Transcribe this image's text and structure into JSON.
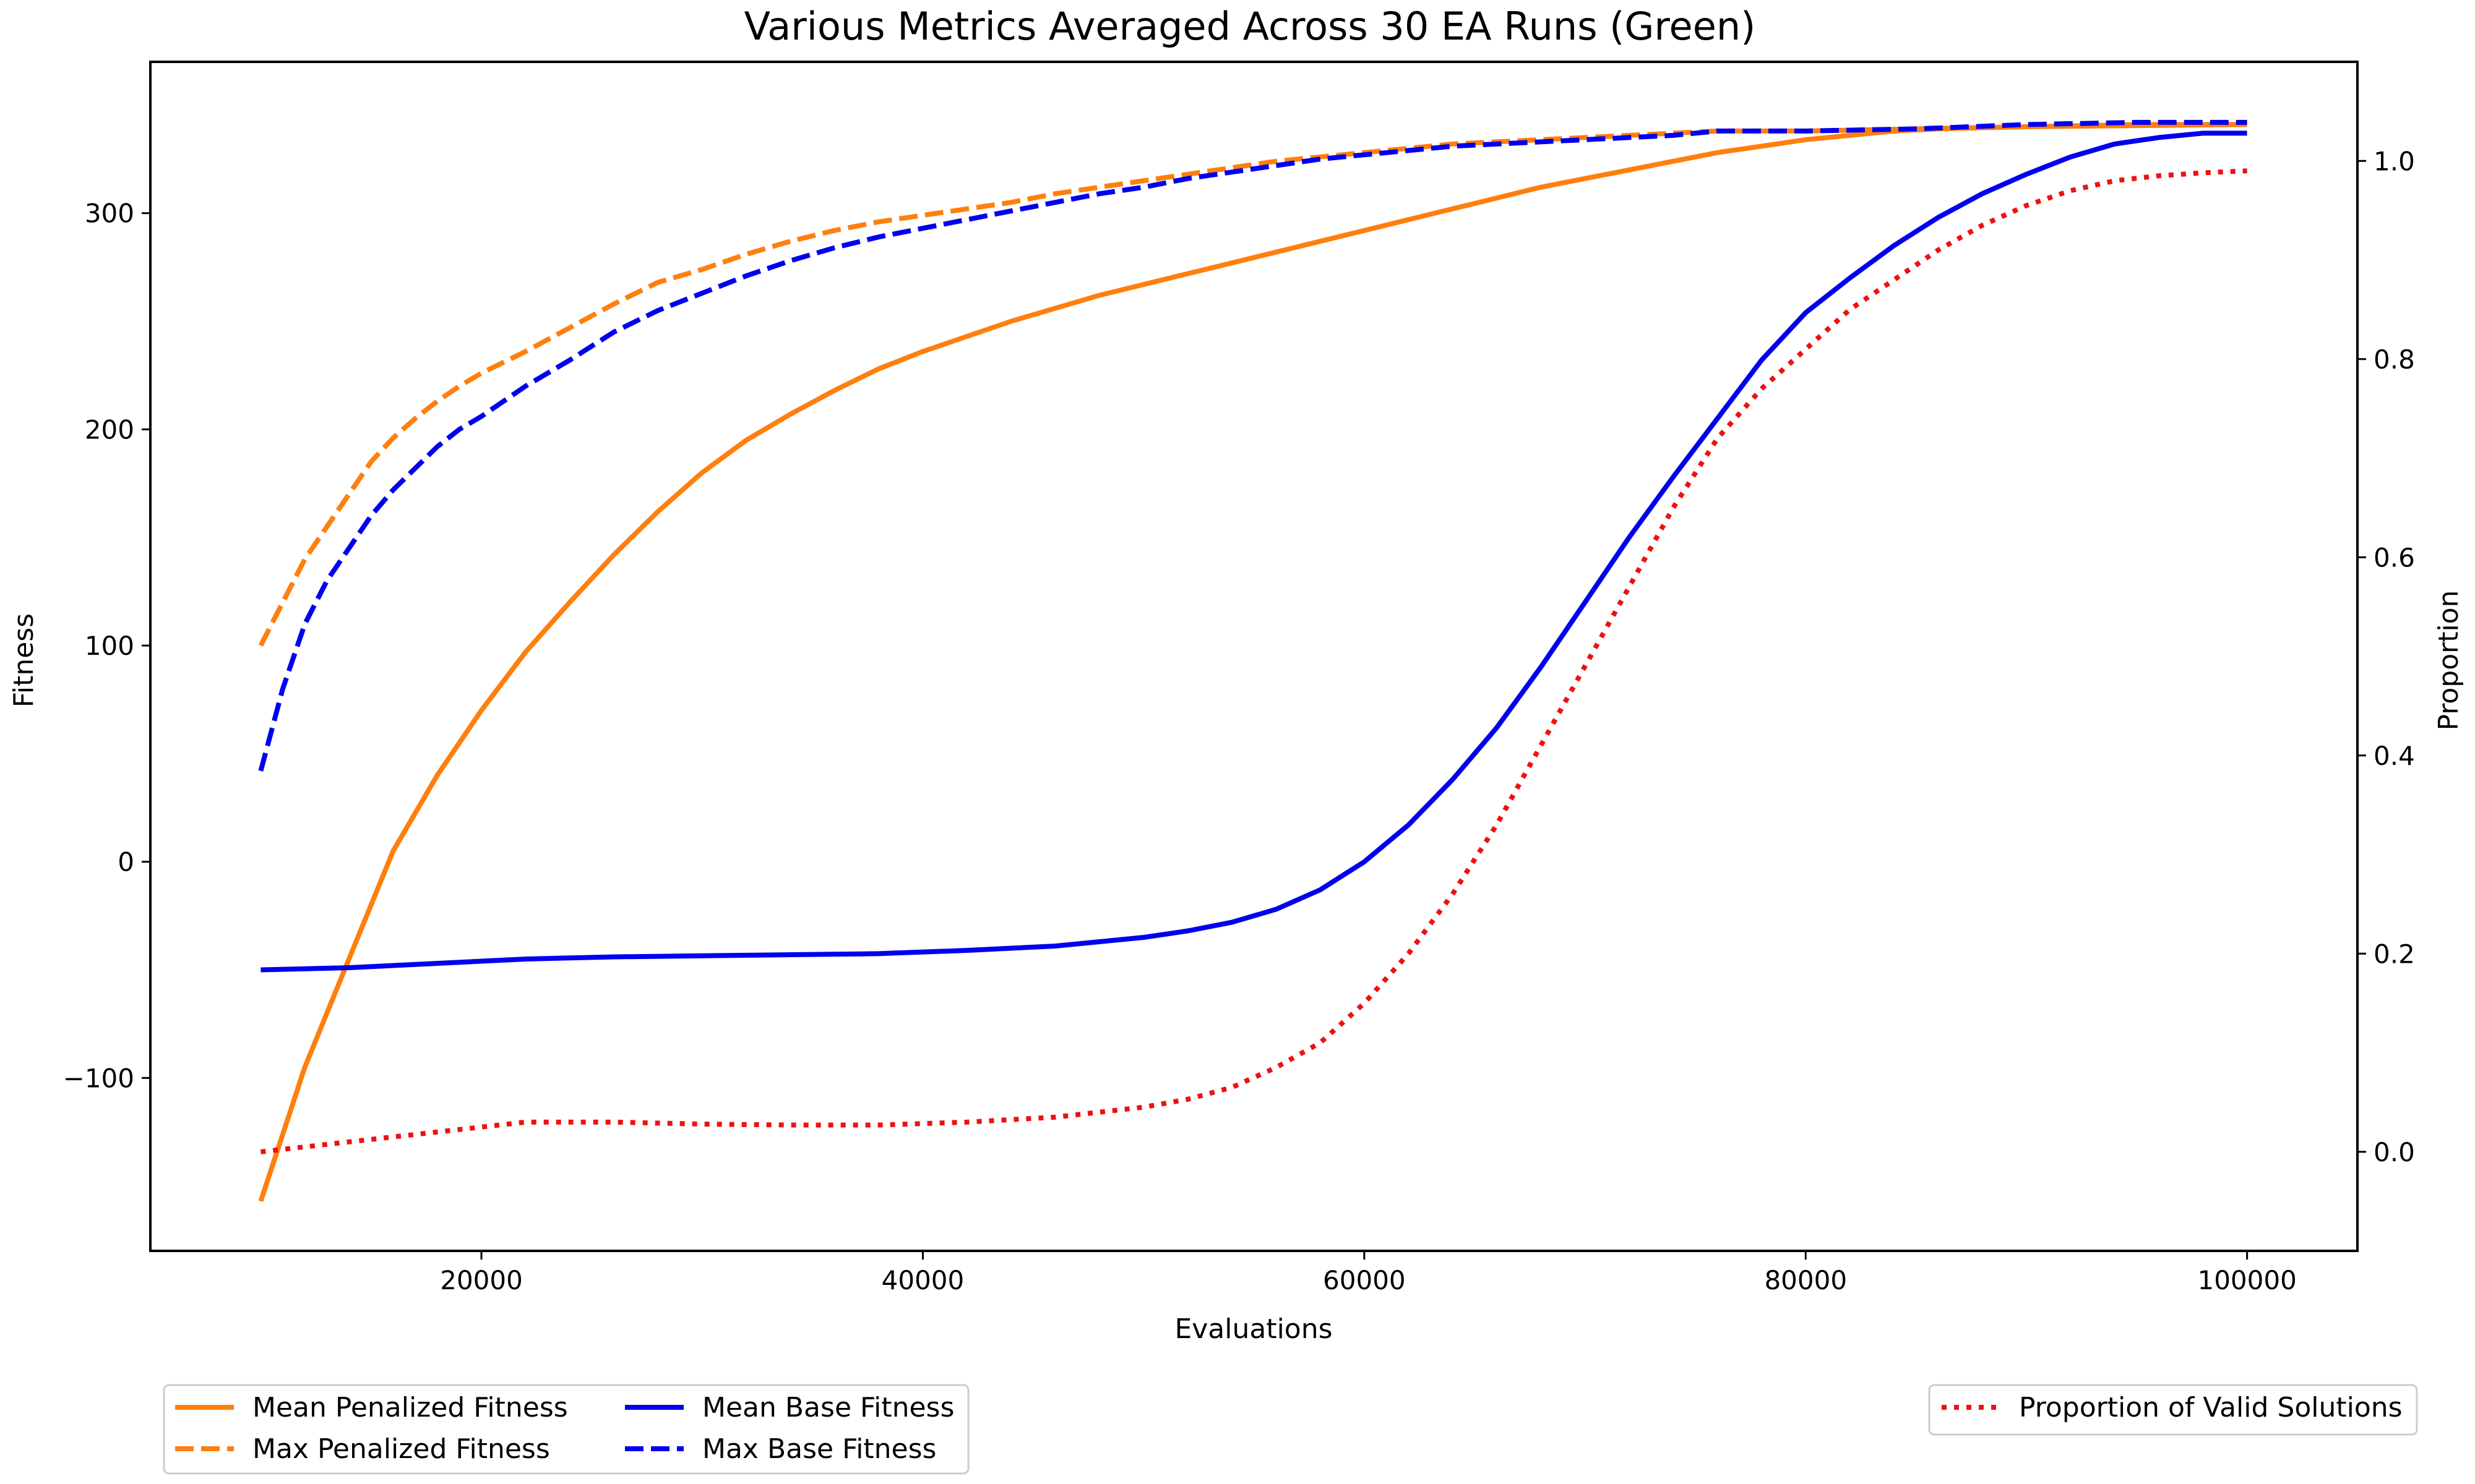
{
  "chart_data": {
    "type": "line",
    "title": "Various Metrics Averaged Across 30 EA Runs (Green)",
    "xlabel": "Evaluations",
    "ylabel": "Fitness",
    "y2label": "Proportion",
    "xlim": [
      5000,
      105000
    ],
    "ylim": [
      -180,
      370
    ],
    "y2lim": [
      -0.1,
      1.1
    ],
    "xticks": [
      20000,
      40000,
      60000,
      80000,
      100000
    ],
    "yticks": [
      -100,
      0,
      100,
      200,
      300
    ],
    "y2ticks": [
      0.0,
      0.2,
      0.4,
      0.6,
      0.8,
      1.0
    ],
    "xtick_labels": [
      "20000",
      "40000",
      "60000",
      "80000",
      "100000"
    ],
    "ytick_labels": [
      "−100",
      "0",
      "100",
      "200",
      "300"
    ],
    "y2tick_labels": [
      "0.0",
      "0.2",
      "0.4",
      "0.6",
      "0.8",
      "1.0"
    ],
    "grid": false,
    "legend_left": [
      "Mean Penalized Fitness",
      "Max Penalized Fitness",
      "Mean Base Fitness",
      "Max Base Fitness"
    ],
    "legend_right": [
      "Proportion of Valid Solutions"
    ],
    "legend_placement": "below",
    "series": [
      {
        "name": "Mean Penalized Fitness",
        "axis": "left",
        "color": "#ff7f0e",
        "style": "solid",
        "points": [
          [
            10000,
            -157
          ],
          [
            12000,
            -95
          ],
          [
            14000,
            -45
          ],
          [
            16000,
            5
          ],
          [
            18000,
            40
          ],
          [
            20000,
            70
          ],
          [
            22000,
            97
          ],
          [
            24000,
            120
          ],
          [
            26000,
            142
          ],
          [
            28000,
            162
          ],
          [
            30000,
            180
          ],
          [
            32000,
            195
          ],
          [
            34000,
            207
          ],
          [
            36000,
            218
          ],
          [
            38000,
            228
          ],
          [
            40000,
            236
          ],
          [
            42000,
            243
          ],
          [
            44000,
            250
          ],
          [
            46000,
            256
          ],
          [
            48000,
            262
          ],
          [
            50000,
            267
          ],
          [
            52000,
            272
          ],
          [
            54000,
            277
          ],
          [
            56000,
            282
          ],
          [
            58000,
            287
          ],
          [
            60000,
            292
          ],
          [
            62000,
            297
          ],
          [
            64000,
            302
          ],
          [
            66000,
            307
          ],
          [
            68000,
            312
          ],
          [
            70000,
            316
          ],
          [
            72000,
            320
          ],
          [
            74000,
            324
          ],
          [
            76000,
            328
          ],
          [
            78000,
            331
          ],
          [
            80000,
            334
          ],
          [
            82000,
            336
          ],
          [
            84000,
            338
          ],
          [
            86000,
            339
          ],
          [
            88000,
            339.5
          ],
          [
            90000,
            340
          ],
          [
            95000,
            340.5
          ],
          [
            100000,
            341
          ]
        ]
      },
      {
        "name": "Max Penalized Fitness",
        "axis": "left",
        "color": "#ff7f0e",
        "style": "dashed",
        "points": [
          [
            10000,
            100
          ],
          [
            11000,
            120
          ],
          [
            12000,
            140
          ],
          [
            13000,
            155
          ],
          [
            14000,
            170
          ],
          [
            15000,
            185
          ],
          [
            16000,
            196
          ],
          [
            17000,
            205
          ],
          [
            18000,
            213
          ],
          [
            19000,
            220
          ],
          [
            20000,
            226
          ],
          [
            22000,
            236
          ],
          [
            24000,
            247
          ],
          [
            26000,
            258
          ],
          [
            28000,
            268
          ],
          [
            30000,
            274
          ],
          [
            32000,
            281
          ],
          [
            34000,
            287
          ],
          [
            36000,
            292
          ],
          [
            38000,
            296
          ],
          [
            40000,
            299
          ],
          [
            42000,
            302
          ],
          [
            44000,
            305
          ],
          [
            46000,
            309
          ],
          [
            48000,
            312
          ],
          [
            50000,
            315
          ],
          [
            52000,
            318
          ],
          [
            54000,
            321
          ],
          [
            56000,
            324
          ],
          [
            58000,
            326
          ],
          [
            60000,
            328
          ],
          [
            62000,
            330
          ],
          [
            64000,
            332
          ],
          [
            66000,
            333
          ],
          [
            68000,
            334
          ],
          [
            70000,
            335
          ],
          [
            72000,
            336
          ],
          [
            74000,
            337
          ],
          [
            76000,
            338
          ],
          [
            80000,
            338
          ],
          [
            85000,
            339
          ],
          [
            90000,
            340
          ],
          [
            95000,
            341
          ],
          [
            100000,
            341
          ]
        ]
      },
      {
        "name": "Mean Base Fitness",
        "axis": "left",
        "color": "#0000ee",
        "style": "solid",
        "points": [
          [
            10000,
            -50
          ],
          [
            14000,
            -49
          ],
          [
            18000,
            -47
          ],
          [
            22000,
            -45
          ],
          [
            26000,
            -44
          ],
          [
            30000,
            -43.5
          ],
          [
            34000,
            -43
          ],
          [
            38000,
            -42.5
          ],
          [
            42000,
            -41
          ],
          [
            46000,
            -39
          ],
          [
            48000,
            -37
          ],
          [
            50000,
            -35
          ],
          [
            52000,
            -32
          ],
          [
            54000,
            -28
          ],
          [
            56000,
            -22
          ],
          [
            58000,
            -13
          ],
          [
            60000,
            0
          ],
          [
            62000,
            17
          ],
          [
            64000,
            38
          ],
          [
            66000,
            62
          ],
          [
            68000,
            90
          ],
          [
            70000,
            120
          ],
          [
            72000,
            150
          ],
          [
            74000,
            178
          ],
          [
            76000,
            205
          ],
          [
            78000,
            232
          ],
          [
            80000,
            254
          ],
          [
            82000,
            270
          ],
          [
            84000,
            285
          ],
          [
            86000,
            298
          ],
          [
            88000,
            309
          ],
          [
            90000,
            318
          ],
          [
            92000,
            326
          ],
          [
            94000,
            332
          ],
          [
            96000,
            335
          ],
          [
            98000,
            337
          ],
          [
            100000,
            337
          ]
        ]
      },
      {
        "name": "Max Base Fitness",
        "axis": "left",
        "color": "#0000ee",
        "style": "dashed",
        "points": [
          [
            10000,
            42
          ],
          [
            11000,
            80
          ],
          [
            12000,
            110
          ],
          [
            13000,
            130
          ],
          [
            14000,
            145
          ],
          [
            15000,
            160
          ],
          [
            16000,
            172
          ],
          [
            17000,
            182
          ],
          [
            18000,
            192
          ],
          [
            19000,
            200
          ],
          [
            20000,
            206
          ],
          [
            22000,
            220
          ],
          [
            24000,
            232
          ],
          [
            26000,
            245
          ],
          [
            28000,
            255
          ],
          [
            30000,
            263
          ],
          [
            32000,
            271
          ],
          [
            34000,
            278
          ],
          [
            36000,
            284
          ],
          [
            38000,
            289
          ],
          [
            40000,
            293
          ],
          [
            42000,
            297
          ],
          [
            44000,
            301
          ],
          [
            46000,
            305
          ],
          [
            48000,
            309
          ],
          [
            50000,
            312
          ],
          [
            52000,
            316
          ],
          [
            54000,
            319
          ],
          [
            56000,
            322
          ],
          [
            58000,
            325
          ],
          [
            60000,
            327
          ],
          [
            62000,
            329
          ],
          [
            64000,
            331
          ],
          [
            66000,
            332
          ],
          [
            68000,
            333
          ],
          [
            70000,
            334
          ],
          [
            72000,
            335
          ],
          [
            74000,
            336
          ],
          [
            76000,
            338
          ],
          [
            80000,
            338
          ],
          [
            85000,
            339
          ],
          [
            90000,
            341
          ],
          [
            95000,
            342
          ],
          [
            100000,
            342
          ]
        ]
      },
      {
        "name": "Proportion of Valid Solutions",
        "axis": "right",
        "color": "#ee1111",
        "style": "dotted",
        "points": [
          [
            10000,
            0.0
          ],
          [
            14000,
            0.01
          ],
          [
            18000,
            0.02
          ],
          [
            22000,
            0.03
          ],
          [
            26000,
            0.03
          ],
          [
            30000,
            0.028
          ],
          [
            34000,
            0.027
          ],
          [
            38000,
            0.027
          ],
          [
            42000,
            0.03
          ],
          [
            46000,
            0.035
          ],
          [
            50000,
            0.045
          ],
          [
            52000,
            0.053
          ],
          [
            54000,
            0.065
          ],
          [
            56000,
            0.085
          ],
          [
            58000,
            0.11
          ],
          [
            60000,
            0.15
          ],
          [
            62000,
            0.2
          ],
          [
            64000,
            0.26
          ],
          [
            66000,
            0.33
          ],
          [
            68000,
            0.41
          ],
          [
            70000,
            0.49
          ],
          [
            72000,
            0.57
          ],
          [
            74000,
            0.65
          ],
          [
            76000,
            0.72
          ],
          [
            78000,
            0.77
          ],
          [
            80000,
            0.81
          ],
          [
            82000,
            0.85
          ],
          [
            84000,
            0.88
          ],
          [
            86000,
            0.91
          ],
          [
            88000,
            0.935
          ],
          [
            90000,
            0.955
          ],
          [
            92000,
            0.97
          ],
          [
            94000,
            0.98
          ],
          [
            96000,
            0.985
          ],
          [
            98000,
            0.988
          ],
          [
            100000,
            0.99
          ]
        ]
      }
    ]
  }
}
